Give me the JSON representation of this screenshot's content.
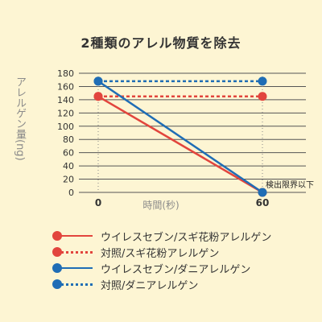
{
  "title": "2種類のアレル物質を除去",
  "chart_data": {
    "type": "line",
    "xlabel": "時間(秒)",
    "ylabel": "アレルゲン量(ng)",
    "x": [
      0,
      60
    ],
    "x_ticks": [
      "0",
      "60"
    ],
    "ylim": [
      0,
      180
    ],
    "y_ticks": [
      0,
      20,
      40,
      60,
      80,
      100,
      120,
      140,
      160,
      180
    ],
    "grid": true,
    "annotation": "検出限界以下",
    "series": [
      {
        "name": "ウイレスセブン/スギ花粉アレルゲン",
        "values": [
          145,
          0
        ],
        "color": "#e2453d",
        "style": "solid"
      },
      {
        "name": "対照/スギ花粉アレルゲン",
        "values": [
          145,
          145
        ],
        "color": "#e2453d",
        "style": "dotted"
      },
      {
        "name": "ウイレスセブン/ダニアレルゲン",
        "values": [
          168,
          0
        ],
        "color": "#1f6db5",
        "style": "solid"
      },
      {
        "name": "対照/ダニアレルゲン",
        "values": [
          168,
          168
        ],
        "color": "#1f6db5",
        "style": "dotted"
      }
    ]
  }
}
